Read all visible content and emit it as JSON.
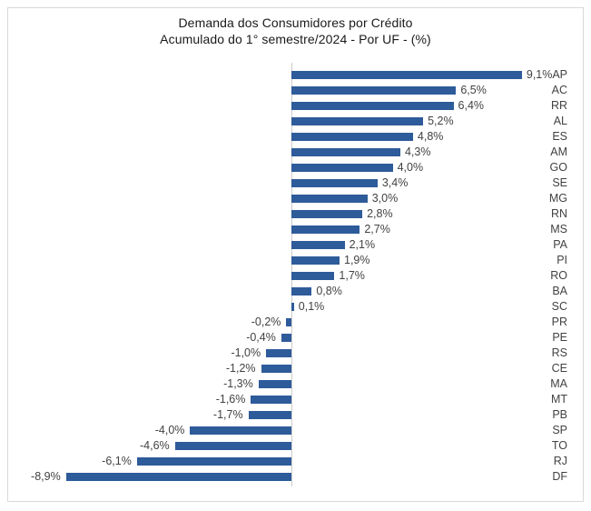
{
  "chart_data": {
    "type": "bar",
    "orientation": "horizontal",
    "title": "Demanda dos Consumidores por Crédito",
    "subtitle": "Acumulado do 1° semestre/2024 - Por UF - (%)",
    "unit": "%",
    "decimal_style": "comma",
    "categories": [
      "AP",
      "AC",
      "RR",
      "AL",
      "ES",
      "AM",
      "GO",
      "SE",
      "MG",
      "RN",
      "MS",
      "PA",
      "PI",
      "RO",
      "BA",
      "SC",
      "PR",
      "PE",
      "RS",
      "CE",
      "MA",
      "MT",
      "PB",
      "SP",
      "TO",
      "RJ",
      "DF"
    ],
    "values": [
      9.1,
      6.5,
      6.4,
      5.2,
      4.8,
      4.3,
      4.0,
      3.4,
      3.0,
      2.8,
      2.7,
      2.1,
      1.9,
      1.7,
      0.8,
      0.1,
      -0.2,
      -0.4,
      -1.0,
      -1.2,
      -1.3,
      -1.6,
      -1.7,
      -4.0,
      -4.6,
      -6.1,
      -8.9
    ],
    "value_labels": [
      "9,1%",
      "6,5%",
      "6,4%",
      "5,2%",
      "4,8%",
      "4,3%",
      "4,0%",
      "3,4%",
      "3,0%",
      "2,8%",
      "2,7%",
      "2,1%",
      "1,9%",
      "1,7%",
      "0,8%",
      "0,1%",
      "-0,2%",
      "-0,4%",
      "-1,0%",
      "-1,2%",
      "-1,3%",
      "-1,6%",
      "-1,7%",
      "-4,0%",
      "-4,6%",
      "-6,1%",
      "-8,9%"
    ],
    "xlim": [
      -10,
      10
    ],
    "grid": false,
    "legend": "none",
    "zero_baseline_shown": true,
    "value_labels_position": "outside-end",
    "category_labels_position": "right-edge"
  },
  "colors": {
    "bar": "#2E5B9A",
    "card_border": "#D9D9D9",
    "zero_line": "#CCCCCC",
    "label_text": "#424242",
    "title_text": "#1A1A1A",
    "background": "#FFFFFF"
  }
}
